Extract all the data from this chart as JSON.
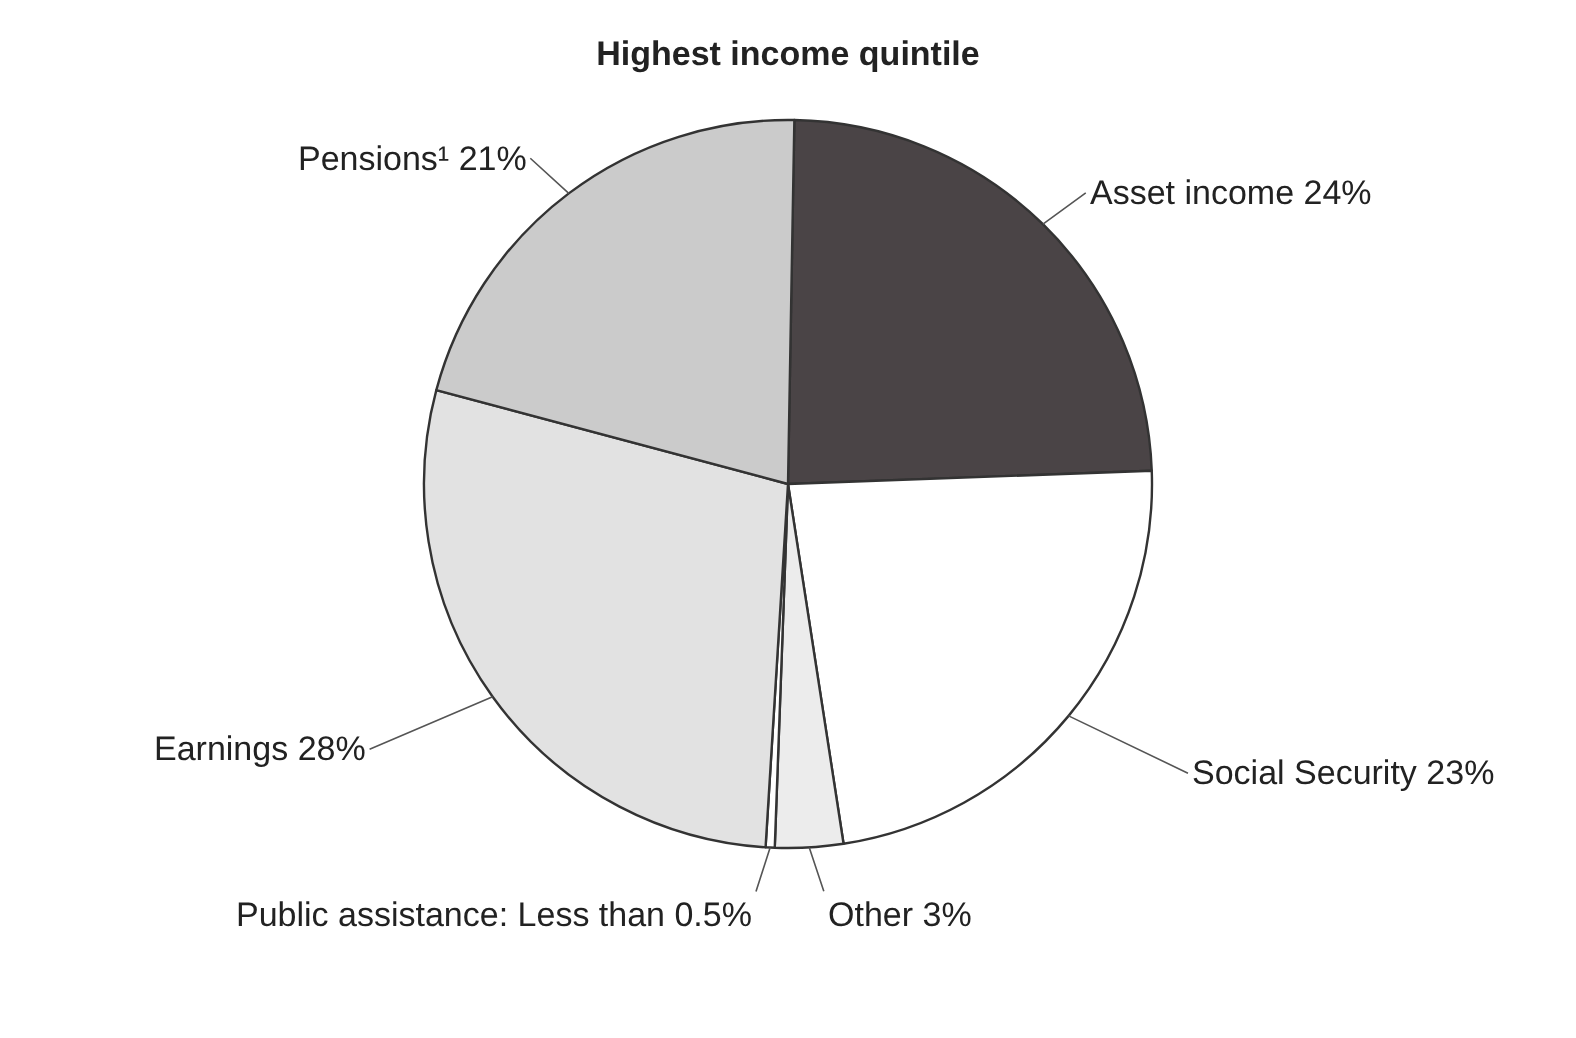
{
  "chart_data": {
    "type": "pie",
    "title": "Highest income quintile",
    "categories": [
      "Asset income",
      "Social Security",
      "Other",
      "Public assistance",
      "Earnings",
      "Pensions¹"
    ],
    "values": [
      24,
      23,
      3,
      0.4,
      28,
      21
    ],
    "value_labels": [
      "24%",
      "23%",
      "3%",
      "Less than 0.5%",
      "28%",
      "21%"
    ],
    "colors": [
      "#4a4446",
      "#ffffff",
      "#ececec",
      "#ffffff",
      "#e2e2e2",
      "#cbcbcb"
    ],
    "legend": false
  }
}
